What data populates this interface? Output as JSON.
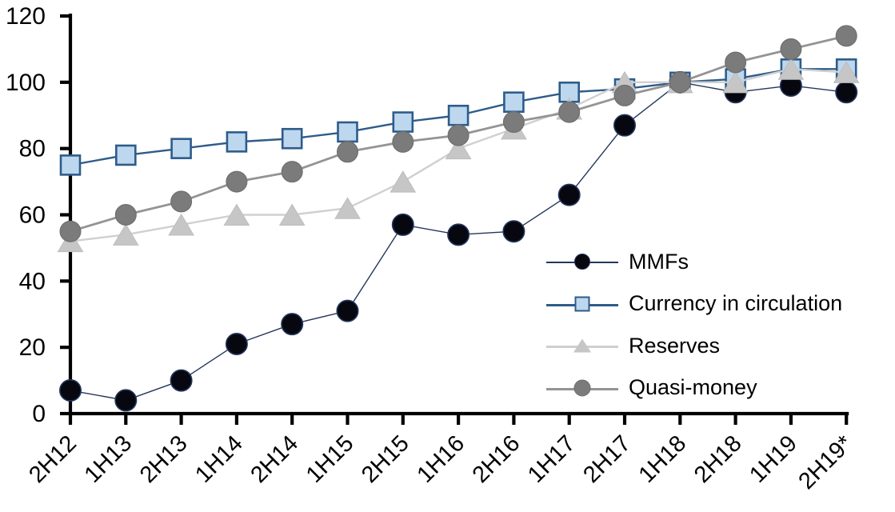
{
  "chart_data": {
    "type": "line",
    "title": "",
    "xlabel": "",
    "ylabel": "",
    "grid": false,
    "legend_position": "inside-right",
    "ylim": [
      0,
      120
    ],
    "ytick_step": 20,
    "ytick_labels": [
      "0",
      "20",
      "40",
      "60",
      "80",
      "100",
      "120"
    ],
    "categories": [
      "2H12",
      "1H13",
      "2H13",
      "1H14",
      "2H14",
      "1H15",
      "2H15",
      "1H16",
      "2H16",
      "1H17",
      "2H17",
      "1H18",
      "2H18",
      "1H19",
      "2H19*"
    ],
    "series": [
      {
        "name": "MMFs",
        "marker": "circle",
        "marker_size": 28,
        "marker_fill": "#070710",
        "marker_stroke": "#24365E",
        "marker_stroke_width": 1.6,
        "line_color": "#24365E",
        "line_width": 1.4,
        "values": [
          7,
          4,
          10,
          21,
          27,
          31,
          57,
          54,
          55,
          66,
          87,
          100,
          97,
          99,
          97
        ]
      },
      {
        "name": "Currency in circulation",
        "marker": "square",
        "marker_size": 26,
        "marker_fill": "#BDD7EE",
        "marker_stroke": "#2E5C8A",
        "marker_stroke_width": 2.6,
        "line_color": "#2E5C8A",
        "line_width": 2.4,
        "values": [
          75,
          78,
          80,
          82,
          83,
          85,
          88,
          90,
          94,
          97,
          98,
          100,
          101,
          104,
          104
        ]
      },
      {
        "name": "Reserves",
        "marker": "triangle",
        "marker_size": 31,
        "marker_fill": "#C6C6C6",
        "marker_stroke": "#BDBDBD",
        "marker_stroke_width": 1,
        "line_color": "#D0D0D0",
        "line_width": 2.4,
        "values": [
          52,
          54,
          57,
          60,
          60,
          62,
          70,
          80,
          86,
          92,
          100,
          100,
          100,
          104,
          103
        ]
      },
      {
        "name": "Quasi-money",
        "marker": "circle",
        "marker_size": 27,
        "marker_fill": "#7B7B7B",
        "marker_stroke": "#6F6F6F",
        "marker_stroke_width": 1.2,
        "line_color": "#949494",
        "line_width": 2.8,
        "values": [
          55,
          60,
          64,
          70,
          73,
          79,
          82,
          84,
          88,
          91,
          96,
          100,
          106,
          110,
          114
        ]
      }
    ]
  },
  "axis_color": "#000000"
}
